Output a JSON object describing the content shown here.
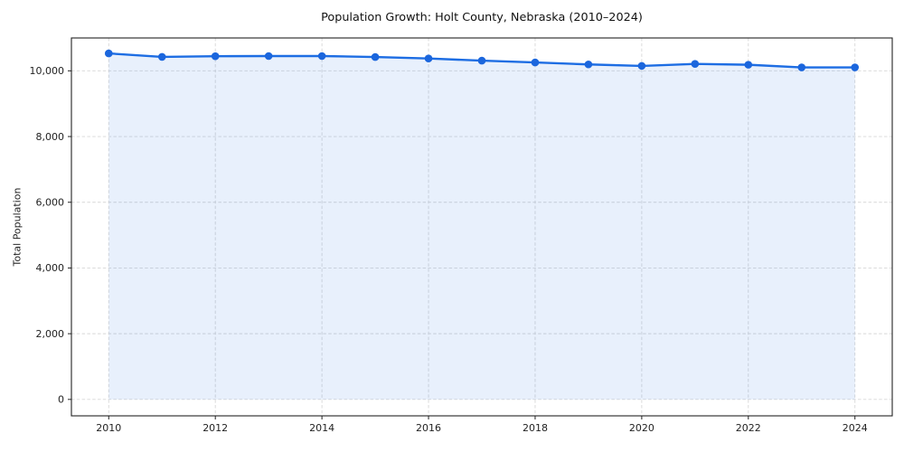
{
  "chart_data": {
    "type": "line",
    "title": "Population Growth: Holt County, Nebraska (2010–2024)",
    "xlabel": "",
    "ylabel": "Total Population",
    "x": [
      2010,
      2011,
      2012,
      2013,
      2014,
      2015,
      2016,
      2017,
      2018,
      2019,
      2020,
      2021,
      2022,
      2023,
      2024
    ],
    "values": [
      10530,
      10425,
      10445,
      10450,
      10450,
      10420,
      10375,
      10310,
      10255,
      10195,
      10150,
      10210,
      10185,
      10105,
      10105
    ],
    "xticks": [
      2010,
      2012,
      2014,
      2016,
      2018,
      2020,
      2022,
      2024
    ],
    "yticks": [
      0,
      2000,
      4000,
      6000,
      8000,
      10000
    ],
    "xlim": [
      2009.3,
      2024.7
    ],
    "ylim": [
      -500,
      11000
    ],
    "fill_to": 0,
    "grid": true,
    "grid_style": "dashed",
    "legend": false,
    "colors": {
      "line": "#1d6de3",
      "marker": "#1b66dd",
      "fill": "#1d6de3",
      "fill_opacity": 0.1,
      "grid": "#d7d7d7",
      "spine": "#222222",
      "tick_text": "#222222"
    }
  }
}
